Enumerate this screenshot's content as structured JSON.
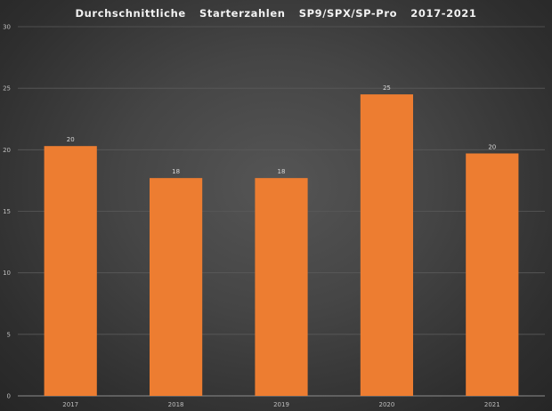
{
  "chart_data": {
    "type": "bar",
    "title": "Durchschnittliche  Starterzahlen  SP9/SPX/SP-Pro  2017-2021",
    "xlabel": "",
    "ylabel": "",
    "categories": [
      "2017",
      "2018",
      "2019",
      "2020",
      "2021"
    ],
    "values": [
      20.3,
      17.7,
      17.7,
      24.5,
      19.7
    ],
    "data_labels": [
      "20",
      "18",
      "18",
      "25",
      "20"
    ],
    "ylim": [
      0,
      30
    ],
    "yticks": [
      0,
      5,
      10,
      15,
      20,
      25,
      30
    ],
    "grid": true,
    "legend": "none",
    "bar_color": "#ED7D31",
    "grid_color": "#5a5a5a",
    "axis_color": "#8c8c8c"
  }
}
